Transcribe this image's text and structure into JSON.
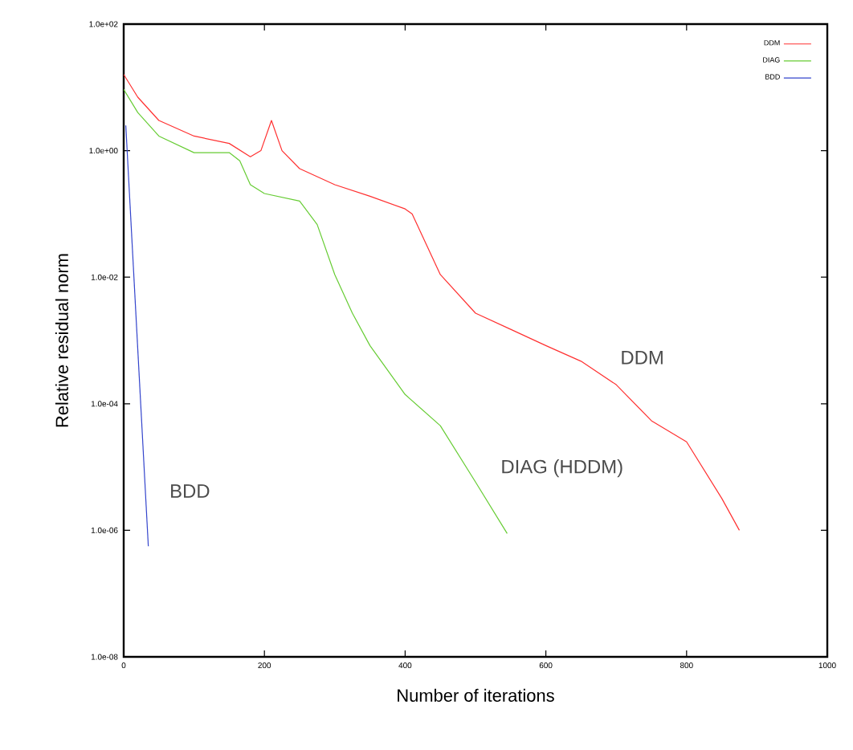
{
  "chart_data": {
    "type": "line",
    "xlabel": "Number of iterations",
    "ylabel": "Relative residual norm",
    "log": "y",
    "xlim": [
      0,
      1000
    ],
    "xticks": [
      0,
      200,
      400,
      600,
      800,
      1000
    ],
    "ylim": [
      1e-08,
      100
    ],
    "yticks": [
      {
        "value": 100,
        "label": "1.0e+02"
      },
      {
        "value": 1,
        "label": "1.0e+00"
      },
      {
        "value": 0.01,
        "label": "1.0e-02"
      },
      {
        "value": 0.0001,
        "label": "1.0e-04"
      },
      {
        "value": 1e-06,
        "label": "1.0e-06"
      },
      {
        "value": 1e-08,
        "label": "1.0e-08"
      }
    ],
    "grid": false,
    "legend": "top right",
    "marker": "none",
    "line_style": "solid",
    "series": [
      {
        "name": "DDM",
        "color": "#ff3030",
        "x": [
          0,
          20,
          50,
          100,
          150,
          180,
          195,
          210,
          225,
          250,
          300,
          350,
          400,
          410,
          450,
          500,
          550,
          600,
          650,
          700,
          750,
          800,
          850,
          875
        ],
        "values": [
          16,
          7,
          3,
          1.7,
          1.3,
          0.8,
          1.0,
          3,
          1.0,
          0.52,
          0.29,
          0.19,
          0.12,
          0.1,
          0.011,
          0.0027,
          0.0015,
          0.00083,
          0.00047,
          0.0002,
          5.4e-05,
          2.5e-05,
          3.2e-06,
          1e-06
        ]
      },
      {
        "name": "DIAG",
        "color": "#66cc33",
        "x": [
          0,
          20,
          50,
          100,
          150,
          165,
          180,
          200,
          250,
          275,
          300,
          325,
          350,
          400,
          450,
          500,
          545
        ],
        "values": [
          9.3,
          4,
          1.7,
          0.93,
          0.93,
          0.69,
          0.29,
          0.21,
          0.16,
          0.068,
          0.011,
          0.0027,
          0.00083,
          0.00014,
          4.5e-05,
          5.8e-06,
          8.9e-07
        ]
      },
      {
        "name": "BDD",
        "color": "#3344cc",
        "x": [
          3,
          35
        ],
        "values": [
          2.5,
          5.6e-07
        ]
      }
    ],
    "annotations": [
      "DDM",
      "DIAG (HDDM)",
      "BDD"
    ]
  }
}
